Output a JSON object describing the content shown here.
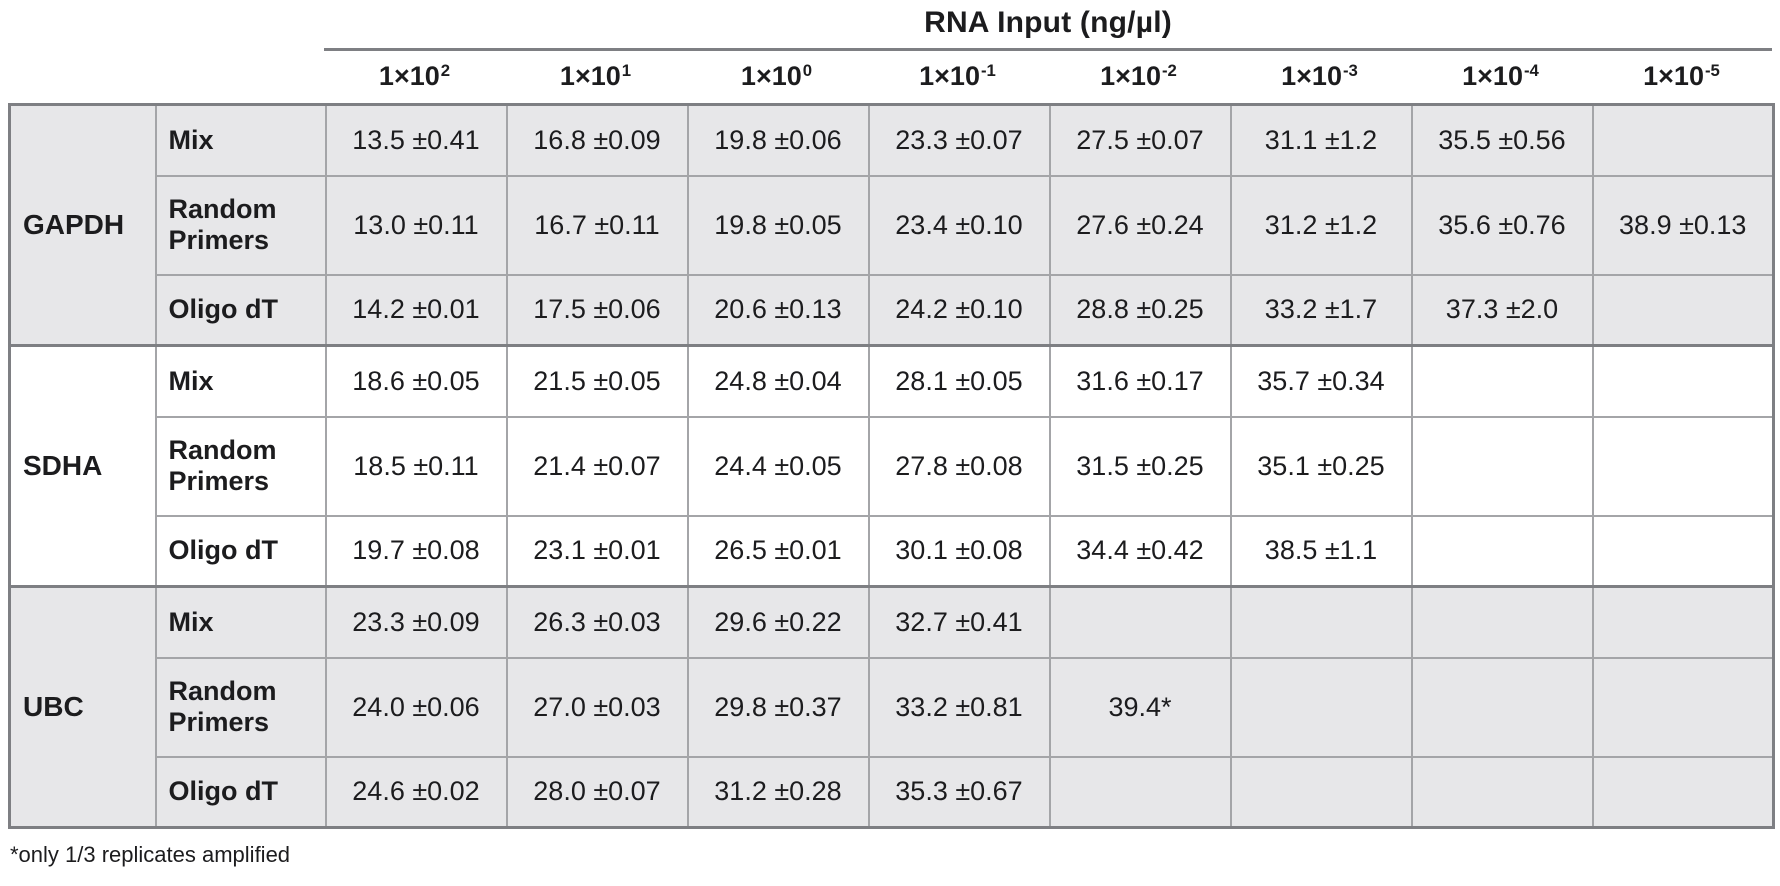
{
  "colors": {
    "shaded_row_bg": "#e7e7e9",
    "cell_border": "#a4a5a8",
    "group_border": "#7e7f83",
    "text_color": "#1c1c1e"
  },
  "chart_data": {
    "type": "table",
    "title": "RNA Input (ng/µl)",
    "footnote": "*only 1/3 replicates amplified",
    "column_headers": [
      {
        "base": "1×10",
        "exp": "2",
        "label": "1×10^2"
      },
      {
        "base": "1×10",
        "exp": "1",
        "label": "1×10^1"
      },
      {
        "base": "1×10",
        "exp": "0",
        "label": "1×10^0"
      },
      {
        "base": "1×10",
        "exp": "-1",
        "label": "1×10^-1"
      },
      {
        "base": "1×10",
        "exp": "-2",
        "label": "1×10^-2"
      },
      {
        "base": "1×10",
        "exp": "-3",
        "label": "1×10^-3"
      },
      {
        "base": "1×10",
        "exp": "-4",
        "label": "1×10^-4"
      },
      {
        "base": "1×10",
        "exp": "-5",
        "label": "1×10^-5"
      }
    ],
    "row_groups": [
      {
        "gene": "GAPDH",
        "shaded": true,
        "rows": [
          {
            "primer": "Mix",
            "values": [
              "13.5 ±0.41",
              "16.8 ±0.09",
              "19.8 ±0.06",
              "23.3 ±0.07",
              "27.5 ±0.07",
              "31.1 ±1.2",
              "35.5 ±0.56",
              ""
            ]
          },
          {
            "primer": "Random Primers",
            "values": [
              "13.0 ±0.11",
              "16.7 ±0.11",
              "19.8 ±0.05",
              "23.4 ±0.10",
              "27.6 ±0.24",
              "31.2 ±1.2",
              "35.6 ±0.76",
              "38.9 ±0.13"
            ]
          },
          {
            "primer": "Oligo dT",
            "values": [
              "14.2 ±0.01",
              "17.5 ±0.06",
              "20.6 ±0.13",
              "24.2 ±0.10",
              "28.8 ±0.25",
              "33.2 ±1.7",
              "37.3 ±2.0",
              ""
            ]
          }
        ]
      },
      {
        "gene": "SDHA",
        "shaded": false,
        "rows": [
          {
            "primer": "Mix",
            "values": [
              "18.6 ±0.05",
              "21.5 ±0.05",
              "24.8 ±0.04",
              "28.1 ±0.05",
              "31.6 ±0.17",
              "35.7 ±0.34",
              "",
              ""
            ]
          },
          {
            "primer": "Random Primers",
            "values": [
              "18.5 ±0.11",
              "21.4 ±0.07",
              "24.4 ±0.05",
              "27.8 ±0.08",
              "31.5 ±0.25",
              "35.1 ±0.25",
              "",
              ""
            ]
          },
          {
            "primer": "Oligo dT",
            "values": [
              "19.7 ±0.08",
              "23.1 ±0.01",
              "26.5 ±0.01",
              "30.1 ±0.08",
              "34.4 ±0.42",
              "38.5 ±1.1",
              "",
              ""
            ]
          }
        ]
      },
      {
        "gene": "UBC",
        "shaded": true,
        "rows": [
          {
            "primer": "Mix",
            "values": [
              "23.3 ±0.09",
              "26.3 ±0.03",
              "29.6 ±0.22",
              "32.7 ±0.41",
              "",
              "",
              "",
              ""
            ]
          },
          {
            "primer": "Random Primers",
            "values": [
              "24.0 ±0.06",
              "27.0 ±0.03",
              "29.8 ±0.37",
              "33.2 ±0.81",
              "39.4*",
              "",
              "",
              ""
            ]
          },
          {
            "primer": "Oligo dT",
            "values": [
              "24.6 ±0.02",
              "28.0 ±0.07",
              "31.2 ±0.28",
              "35.3 ±0.67",
              "",
              "",
              "",
              ""
            ]
          }
        ]
      }
    ]
  }
}
